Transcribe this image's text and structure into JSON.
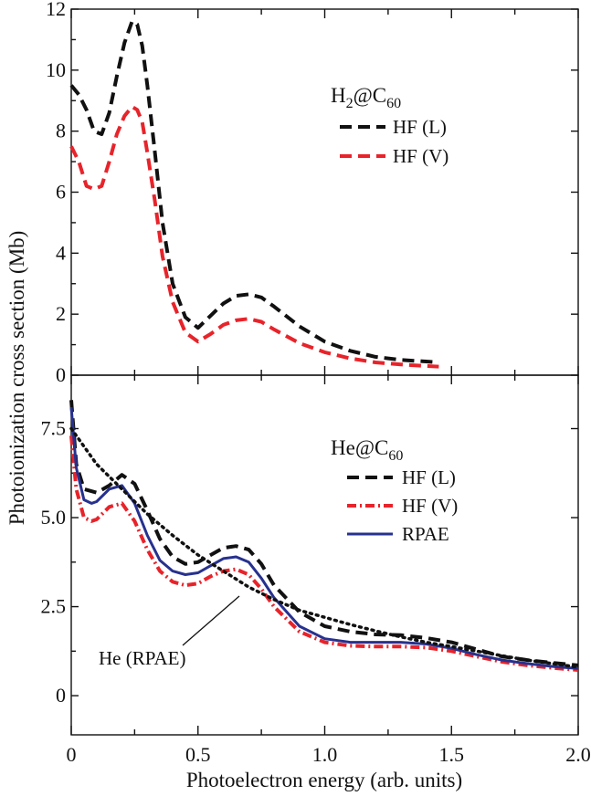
{
  "chart_data": [
    {
      "type": "line",
      "panel": "top",
      "title_main": "H",
      "title_sub1": "2",
      "title_mid": "@C",
      "title_sub2": "60",
      "xlim": [
        0,
        2.0
      ],
      "ylim": [
        0,
        12
      ],
      "yticks": [
        0,
        2,
        4,
        6,
        8,
        10,
        12
      ],
      "ytick_labels": [
        "0",
        "2",
        "4",
        "6",
        "8",
        "10",
        "12"
      ],
      "xticks": [
        0,
        0.25,
        0.5,
        0.75,
        1.0,
        1.25,
        1.5,
        1.75,
        2.0
      ],
      "series": [
        {
          "name": "HF (L)",
          "color": "#111111",
          "dash": "dashed",
          "x": [
            0,
            0.03,
            0.06,
            0.09,
            0.12,
            0.15,
            0.18,
            0.21,
            0.24,
            0.26,
            0.28,
            0.3,
            0.33,
            0.36,
            0.4,
            0.45,
            0.5,
            0.55,
            0.6,
            0.65,
            0.7,
            0.75,
            0.8,
            0.9,
            1.0,
            1.1,
            1.2,
            1.3,
            1.4,
            1.45
          ],
          "y": [
            9.5,
            9.2,
            8.7,
            8.0,
            7.9,
            8.6,
            9.8,
            10.9,
            11.6,
            11.5,
            10.8,
            9.5,
            7.3,
            5.0,
            3.0,
            1.9,
            1.55,
            1.95,
            2.35,
            2.6,
            2.65,
            2.55,
            2.25,
            1.6,
            1.1,
            0.8,
            0.6,
            0.5,
            0.45,
            0.42
          ]
        },
        {
          "name": "HF (V)",
          "color": "#e8232a",
          "dash": "dashed",
          "x": [
            0,
            0.03,
            0.06,
            0.09,
            0.12,
            0.15,
            0.18,
            0.21,
            0.24,
            0.26,
            0.28,
            0.3,
            0.33,
            0.36,
            0.4,
            0.45,
            0.5,
            0.55,
            0.6,
            0.65,
            0.7,
            0.75,
            0.8,
            0.9,
            1.0,
            1.1,
            1.2,
            1.3,
            1.4,
            1.45
          ],
          "y": [
            7.5,
            7.0,
            6.2,
            6.1,
            6.2,
            7.0,
            7.9,
            8.5,
            8.8,
            8.7,
            8.3,
            7.3,
            5.7,
            3.9,
            2.4,
            1.4,
            1.1,
            1.35,
            1.65,
            1.8,
            1.85,
            1.75,
            1.5,
            1.05,
            0.75,
            0.55,
            0.42,
            0.35,
            0.3,
            0.28
          ]
        }
      ]
    },
    {
      "type": "line",
      "panel": "bottom",
      "title_main": "He@C",
      "title_sub2": "60",
      "xlim": [
        0,
        2.0
      ],
      "ylim": [
        -1.1,
        9.0
      ],
      "yticks": [
        0,
        2.5,
        5.0,
        7.5
      ],
      "ytick_labels": [
        "0",
        "2.5",
        "5.0",
        "7.5"
      ],
      "xticks": [
        0,
        0.25,
        0.5,
        0.75,
        1.0,
        1.25,
        1.5,
        1.75,
        2.0
      ],
      "xtick_labels": [
        "0",
        "0.5",
        "1.0",
        "1.5",
        "2.0"
      ],
      "xtick_label_values": [
        0,
        0.5,
        1.0,
        1.5,
        2.0
      ],
      "xlabel": "Photoelectron energy  (arb. units)",
      "series": [
        {
          "name": "HF (L)",
          "color": "#111111",
          "dash": "dashed",
          "x": [
            0,
            0.02,
            0.05,
            0.1,
            0.15,
            0.2,
            0.25,
            0.3,
            0.35,
            0.4,
            0.45,
            0.5,
            0.55,
            0.6,
            0.65,
            0.7,
            0.75,
            0.8,
            0.9,
            1.0,
            1.1,
            1.2,
            1.3,
            1.4,
            1.5,
            1.6,
            1.7,
            1.8,
            1.9,
            2.0
          ],
          "y": [
            8.3,
            6.5,
            5.8,
            5.7,
            5.9,
            6.2,
            5.95,
            5.2,
            4.4,
            3.9,
            3.7,
            3.75,
            3.95,
            4.15,
            4.2,
            4.1,
            3.7,
            3.1,
            2.35,
            1.95,
            1.8,
            1.72,
            1.7,
            1.62,
            1.5,
            1.3,
            1.1,
            1.0,
            0.92,
            0.85
          ]
        },
        {
          "name": "HF (V)",
          "color": "#e8232a",
          "dash": "dashdot",
          "x": [
            0,
            0.02,
            0.05,
            0.08,
            0.1,
            0.15,
            0.2,
            0.25,
            0.3,
            0.35,
            0.4,
            0.45,
            0.5,
            0.55,
            0.6,
            0.65,
            0.7,
            0.75,
            0.8,
            0.9,
            1.0,
            1.1,
            1.2,
            1.3,
            1.4,
            1.5,
            1.6,
            1.7,
            1.8,
            1.9,
            2.0
          ],
          "y": [
            7.3,
            5.8,
            5.0,
            4.9,
            4.95,
            5.3,
            5.4,
            4.9,
            4.1,
            3.5,
            3.2,
            3.1,
            3.15,
            3.35,
            3.5,
            3.55,
            3.4,
            3.0,
            2.5,
            1.8,
            1.5,
            1.4,
            1.38,
            1.38,
            1.35,
            1.25,
            1.1,
            0.95,
            0.85,
            0.78,
            0.72
          ]
        },
        {
          "name": "RPAE",
          "color": "#27318f",
          "dash": "solid",
          "x": [
            0,
            0.02,
            0.05,
            0.08,
            0.1,
            0.15,
            0.2,
            0.25,
            0.3,
            0.35,
            0.4,
            0.45,
            0.5,
            0.55,
            0.6,
            0.65,
            0.7,
            0.75,
            0.8,
            0.9,
            1.0,
            1.1,
            1.2,
            1.3,
            1.4,
            1.5,
            1.6,
            1.7,
            1.8,
            1.9,
            2.0
          ],
          "y": [
            8.1,
            6.4,
            5.5,
            5.4,
            5.45,
            5.8,
            5.9,
            5.4,
            4.5,
            3.8,
            3.5,
            3.4,
            3.45,
            3.65,
            3.85,
            3.9,
            3.75,
            3.3,
            2.75,
            1.95,
            1.6,
            1.5,
            1.5,
            1.5,
            1.45,
            1.33,
            1.15,
            1.0,
            0.9,
            0.82,
            0.76
          ]
        },
        {
          "name": "He (RPAE)",
          "color": "#111111",
          "dash": "dotted",
          "x": [
            0,
            0.05,
            0.1,
            0.2,
            0.3,
            0.4,
            0.5,
            0.6,
            0.7,
            0.8,
            0.9,
            1.0,
            1.1,
            1.2,
            1.3,
            1.4,
            1.5,
            1.6,
            1.7,
            1.8,
            1.9,
            2.0
          ],
          "y": [
            7.5,
            7.0,
            6.5,
            5.8,
            5.1,
            4.5,
            3.95,
            3.5,
            3.05,
            2.7,
            2.4,
            2.2,
            2.0,
            1.82,
            1.65,
            1.5,
            1.38,
            1.25,
            1.12,
            1.0,
            0.9,
            0.8
          ]
        }
      ],
      "annotation": {
        "text": "He (RPAE)",
        "x": 0.63,
        "y": 3.55
      }
    }
  ],
  "ylabel": "Photoionization cross section  (Mb)"
}
